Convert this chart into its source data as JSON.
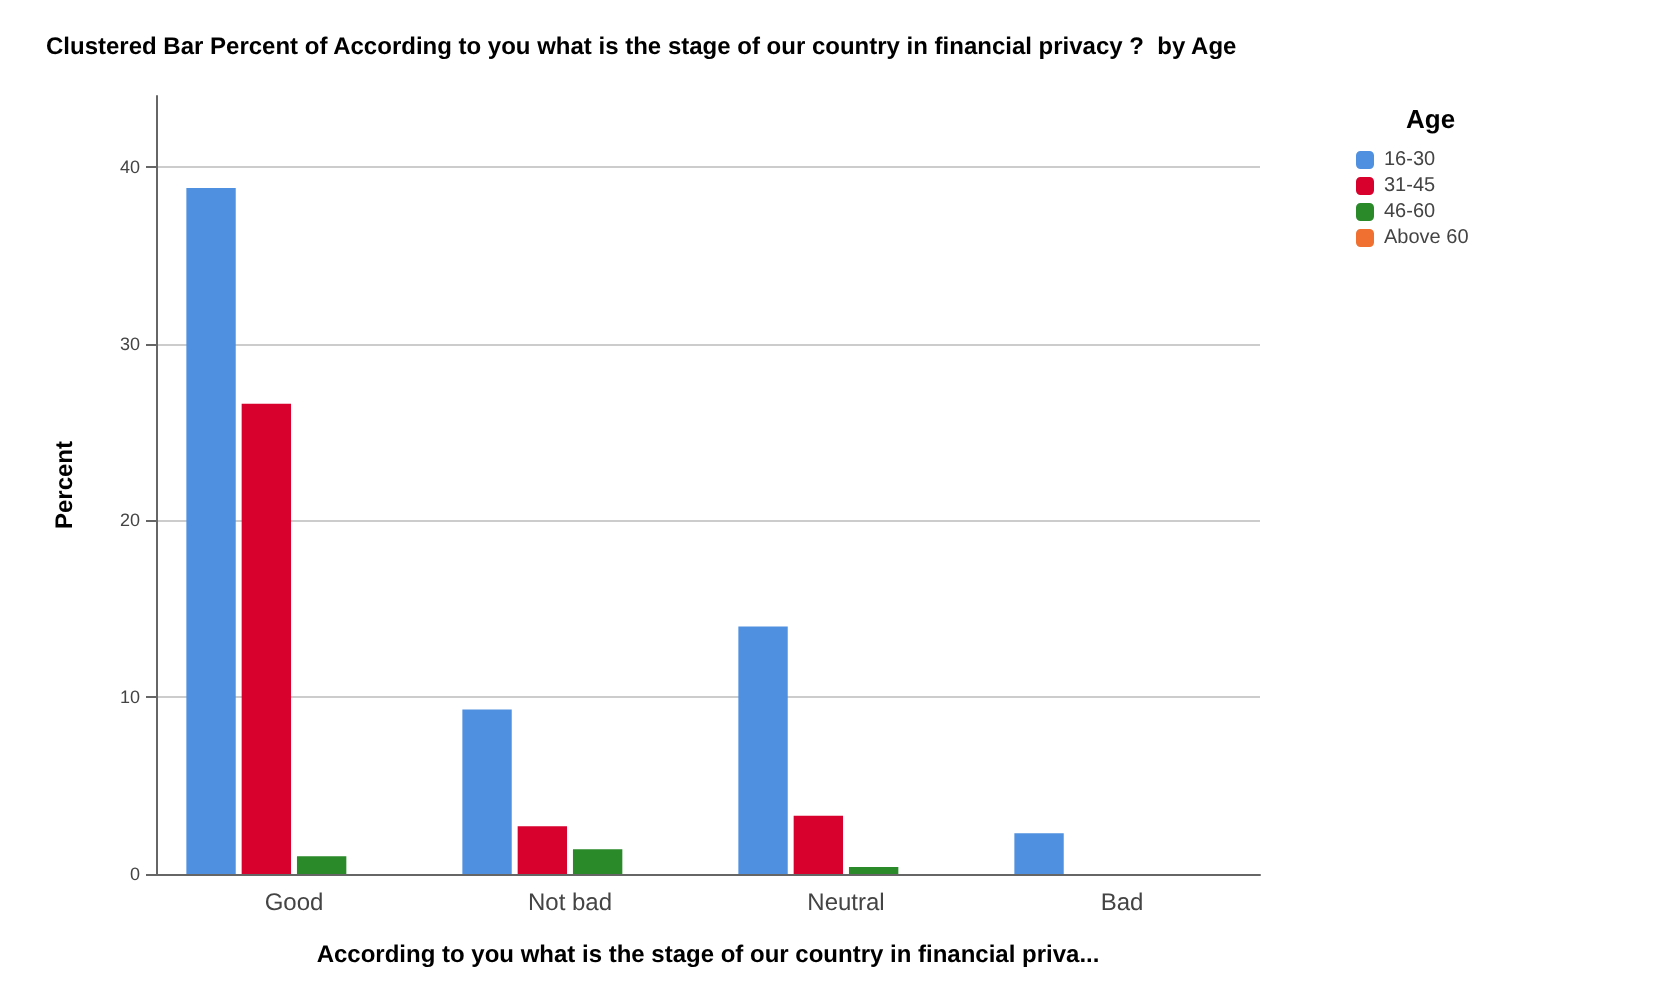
{
  "chart_data": {
    "type": "bar",
    "title": "Clustered Bar Percent of According to you what is the stage of our country in financial privacy ?  by Age",
    "xlabel": "According to you what is the stage of our country in financial priva...",
    "ylabel": "Percent",
    "legend_title": "Age",
    "categories": [
      "Good",
      "Not bad",
      "Neutral",
      "Bad"
    ],
    "series": [
      {
        "name": "16-30",
        "color": "#5090e0",
        "values": [
          38.8,
          9.3,
          14.0,
          2.3
        ]
      },
      {
        "name": "31-45",
        "color": "#d8002c",
        "values": [
          26.6,
          2.7,
          3.3,
          null
        ]
      },
      {
        "name": "46-60",
        "color": "#2a8a2a",
        "values": [
          1.0,
          1.4,
          0.4,
          null
        ]
      },
      {
        "name": "Above 60",
        "color": "#ef7030",
        "values": [
          null,
          null,
          null,
          null
        ]
      }
    ],
    "ylim": [
      0,
      44
    ],
    "yticks": [
      0,
      10,
      20,
      30,
      40
    ],
    "grid": "y",
    "legend": "top right"
  }
}
